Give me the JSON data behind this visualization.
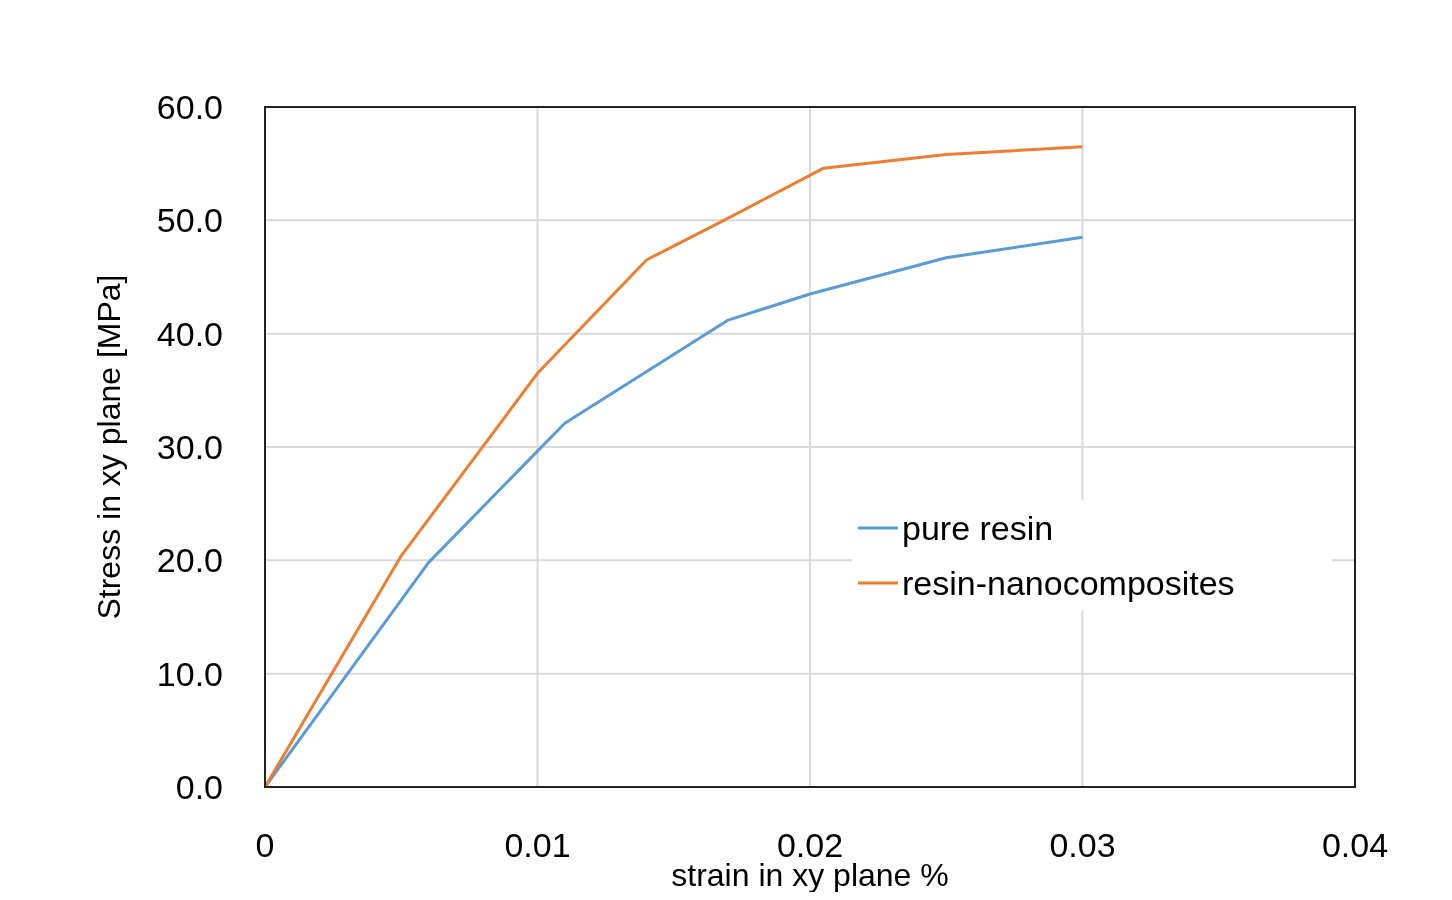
{
  "chart_data": {
    "type": "line",
    "xlabel": "strain in xy plane %",
    "ylabel": "Stress in xy plane [MPa]",
    "xlim": [
      0,
      0.04
    ],
    "xticks": [
      0,
      0.01,
      0.02,
      0.03,
      0.04
    ],
    "ylim": [
      0,
      60
    ],
    "yticks": [
      {
        "value": 0,
        "label": "0.0"
      },
      {
        "value": 10,
        "label": "10.0"
      },
      {
        "value": 20,
        "label": "20.0"
      },
      {
        "value": 30,
        "label": "30.0"
      },
      {
        "value": 40,
        "label": "40.0"
      },
      {
        "value": 50,
        "label": "50.0"
      },
      {
        "value": 60,
        "label": "60.0"
      }
    ],
    "grid": true,
    "legend": "right",
    "marker": "none",
    "line_style": "solid",
    "series": [
      {
        "name": "pure resin",
        "color": "#5b9bd5",
        "x": [
          0,
          0.006,
          0.011,
          0.017,
          0.02,
          0.025,
          0.03
        ],
        "values": [
          0,
          19.8,
          32.1,
          41.2,
          43.5,
          46.7,
          48.5
        ]
      },
      {
        "name": "resin-nanocomposites",
        "color": "#ed7d31",
        "x": [
          0,
          0.005,
          0.01,
          0.014,
          0.017,
          0.0205,
          0.025,
          0.03
        ],
        "values": [
          0,
          20.4,
          36.5,
          46.5,
          50.2,
          54.6,
          55.8,
          56.5
        ]
      }
    ]
  }
}
